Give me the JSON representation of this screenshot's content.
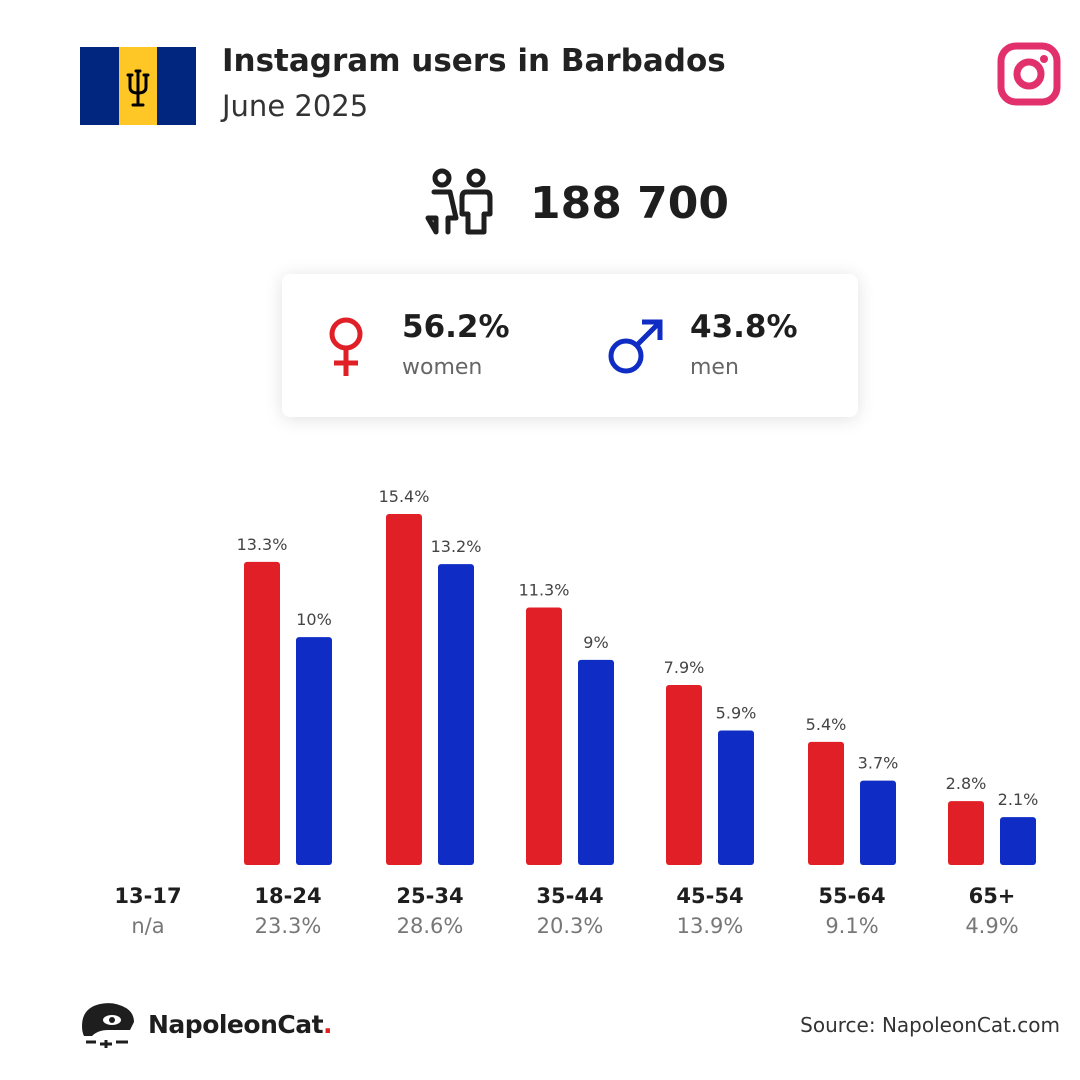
{
  "header": {
    "title": "Instagram users in Barbados",
    "subtitle": "June 2025"
  },
  "total": {
    "value": "188 700"
  },
  "gender": {
    "women_pct": "56.2%",
    "women_label": "women",
    "men_pct": "43.8%",
    "men_label": "men"
  },
  "colors": {
    "women": "#e01f26",
    "men": "#0f2cc4",
    "instagram": "#e1306c"
  },
  "icons": {
    "flag": "barbados-flag-icon",
    "brand": "instagram-icon",
    "users": "people-icon",
    "female": "female-symbol-icon",
    "male": "male-symbol-icon",
    "logo": "napoleoncat-logo-icon"
  },
  "chart_data": {
    "type": "bar",
    "categories": [
      "13-17",
      "18-24",
      "25-34",
      "35-44",
      "45-54",
      "55-64",
      "65+"
    ],
    "category_totals": [
      "n/a",
      "23.3%",
      "28.6%",
      "20.3%",
      "13.9%",
      "9.1%",
      "4.9%"
    ],
    "series": [
      {
        "name": "women",
        "values": [
          null,
          13.3,
          15.4,
          11.3,
          7.9,
          5.4,
          2.8
        ],
        "labels": [
          "",
          "13.3%",
          "15.4%",
          "11.3%",
          "7.9%",
          "5.4%",
          "2.8%"
        ]
      },
      {
        "name": "men",
        "values": [
          null,
          10,
          13.2,
          9,
          5.9,
          3.7,
          2.1
        ],
        "labels": [
          "",
          "10%",
          "13.2%",
          "9%",
          "5.9%",
          "3.7%",
          "2.1%"
        ]
      }
    ],
    "ylim": [
      0,
      15.4
    ]
  },
  "footer": {
    "brand": "NapoleonCat",
    "brand_dot": ".",
    "source": "Source: NapoleonCat.com"
  }
}
